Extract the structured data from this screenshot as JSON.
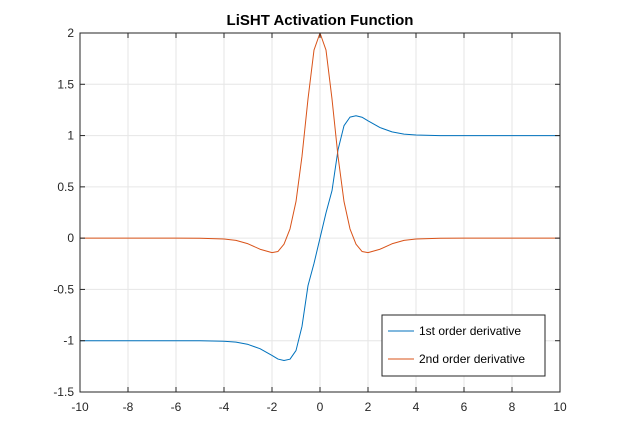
{
  "chart_data": {
    "type": "line",
    "title": "LiSHT Activation Function",
    "xlabel": "",
    "ylabel": "",
    "xlim": [
      -10,
      10
    ],
    "ylim": [
      -1.5,
      2
    ],
    "xticks": [
      -10,
      -8,
      -6,
      -4,
      -2,
      0,
      2,
      4,
      6,
      8,
      10
    ],
    "xtick_labels": [
      "-10",
      "-8",
      "-6",
      "-4",
      "-2",
      "0",
      "2",
      "4",
      "6",
      "8",
      "10"
    ],
    "yticks": [
      -1.5,
      -1,
      -0.5,
      0,
      0.5,
      1,
      1.5,
      2
    ],
    "ytick_labels": [
      "-1.5",
      "-1",
      "-0.5",
      "0",
      "0.5",
      "1",
      "1.5",
      "2"
    ],
    "grid": true,
    "legend_position": "bottom-right",
    "series": [
      {
        "name": "1st order derivative",
        "color": "#0072BD",
        "x": [
          -10,
          -9,
          -8,
          -7,
          -6,
          -5,
          -4,
          -3.5,
          -3,
          -2.5,
          -2,
          -1.75,
          -1.5,
          -1.25,
          -1,
          -0.75,
          -0.5,
          -0.25,
          0,
          0.25,
          0.5,
          0.75,
          1,
          1.25,
          1.5,
          1.75,
          2,
          2.5,
          3,
          3.5,
          4,
          5,
          6,
          7,
          8,
          9,
          10
        ],
        "y": [
          -1,
          -1,
          -1,
          -1,
          -1,
          -1,
          -1.005,
          -1.014,
          -1.036,
          -1.078,
          -1.144,
          -1.179,
          -1.193,
          -1.18,
          -1.096,
          -0.86,
          -0.463,
          -0.246,
          0,
          0.246,
          0.463,
          0.86,
          1.096,
          1.18,
          1.193,
          1.179,
          1.144,
          1.078,
          1.036,
          1.014,
          1.005,
          1,
          1,
          1,
          1,
          1,
          1
        ]
      },
      {
        "name": "2nd order derivative",
        "color": "#D95319",
        "x": [
          -10,
          -9,
          -8,
          -7,
          -6,
          -5,
          -4,
          -3.5,
          -3,
          -2.5,
          -2,
          -1.75,
          -1.5,
          -1.25,
          -1,
          -0.75,
          -0.5,
          -0.25,
          0,
          0.25,
          0.5,
          0.75,
          1,
          1.25,
          1.5,
          1.75,
          2,
          2.5,
          3,
          3.5,
          4,
          5,
          6,
          7,
          8,
          9,
          10
        ],
        "y": [
          0,
          0,
          0,
          0,
          0,
          -0.001,
          -0.008,
          -0.022,
          -0.055,
          -0.108,
          -0.141,
          -0.13,
          -0.059,
          0.09,
          0.357,
          0.799,
          1.357,
          1.834,
          2,
          1.834,
          1.357,
          0.799,
          0.357,
          0.09,
          -0.059,
          -0.13,
          -0.141,
          -0.108,
          -0.055,
          -0.022,
          -0.008,
          -0.001,
          0,
          0,
          0,
          0,
          0
        ]
      }
    ]
  }
}
